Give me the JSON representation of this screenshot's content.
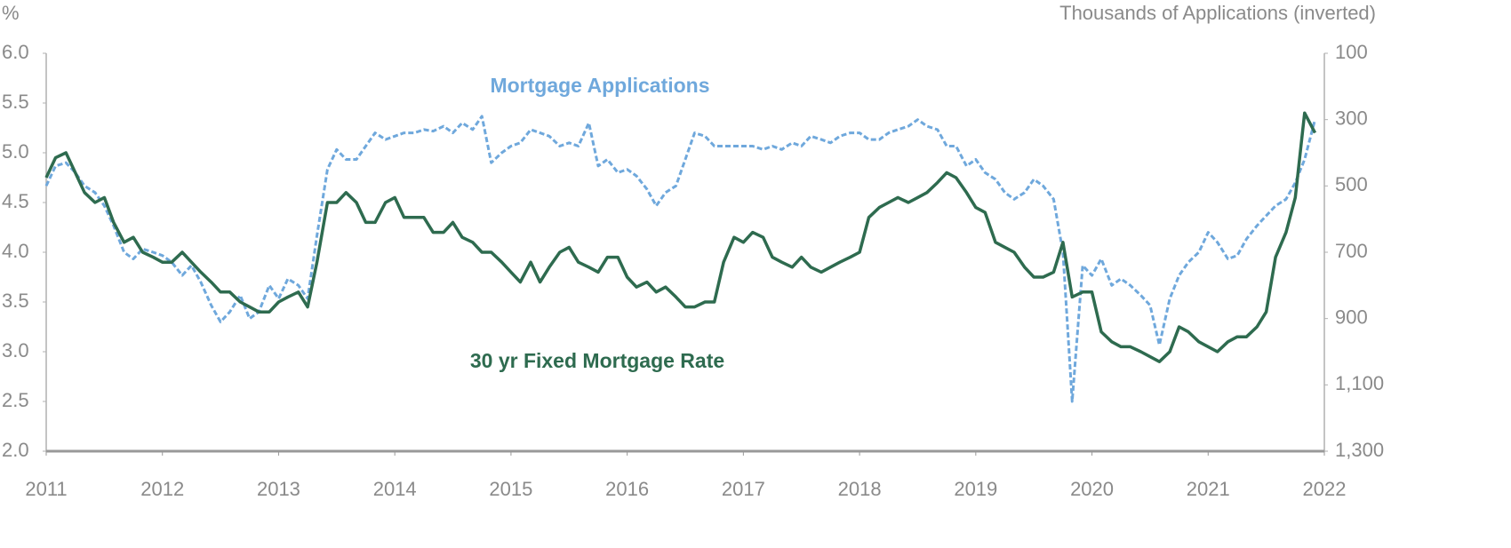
{
  "chart_data": {
    "type": "line",
    "y_unit": "%",
    "y2_label": "Thousands of Applications (inverted)",
    "x": [
      2011,
      2011.08,
      2011.17,
      2011.25,
      2011.33,
      2011.42,
      2011.5,
      2011.58,
      2011.67,
      2011.75,
      2011.83,
      2011.92,
      2012,
      2012.08,
      2012.17,
      2012.25,
      2012.33,
      2012.42,
      2012.5,
      2012.58,
      2012.67,
      2012.75,
      2012.83,
      2012.92,
      2013,
      2013.08,
      2013.17,
      2013.25,
      2013.33,
      2013.42,
      2013.5,
      2013.58,
      2013.67,
      2013.75,
      2013.83,
      2013.92,
      2014,
      2014.08,
      2014.17,
      2014.25,
      2014.33,
      2014.42,
      2014.5,
      2014.58,
      2014.67,
      2014.75,
      2014.83,
      2014.92,
      2015,
      2015.08,
      2015.17,
      2015.25,
      2015.33,
      2015.42,
      2015.5,
      2015.58,
      2015.67,
      2015.75,
      2015.83,
      2015.92,
      2016,
      2016.08,
      2016.17,
      2016.25,
      2016.33,
      2016.42,
      2016.5,
      2016.58,
      2016.67,
      2016.75,
      2016.83,
      2016.92,
      2017,
      2017.08,
      2017.17,
      2017.25,
      2017.33,
      2017.42,
      2017.5,
      2017.58,
      2017.67,
      2017.75,
      2017.83,
      2017.92,
      2018,
      2018.08,
      2018.17,
      2018.25,
      2018.33,
      2018.42,
      2018.5,
      2018.58,
      2018.67,
      2018.75,
      2018.83,
      2018.92,
      2019,
      2019.08,
      2019.17,
      2019.25,
      2019.33,
      2019.42,
      2019.5,
      2019.58,
      2019.67,
      2019.75,
      2019.83,
      2019.92,
      2020,
      2020.08,
      2020.17,
      2020.25,
      2020.33,
      2020.42,
      2020.5,
      2020.58,
      2020.67,
      2020.75,
      2020.83,
      2020.92,
      2021,
      2021.08,
      2021.17,
      2021.25,
      2021.33,
      2021.42,
      2021.5,
      2021.58,
      2021.67,
      2021.75,
      2021.83,
      2021.92
    ],
    "series": [
      {
        "name": "30 yr Fixed Mortgage Rate",
        "color": "#2e6b4f",
        "dashed": false,
        "axis": "y",
        "values": [
          4.75,
          4.95,
          5.0,
          4.8,
          4.6,
          4.5,
          4.55,
          4.3,
          4.1,
          4.15,
          4.0,
          3.95,
          3.9,
          3.9,
          4.0,
          3.9,
          3.8,
          3.7,
          3.6,
          3.6,
          3.5,
          3.45,
          3.4,
          3.4,
          3.5,
          3.55,
          3.6,
          3.45,
          3.9,
          4.5,
          4.5,
          4.6,
          4.5,
          4.3,
          4.3,
          4.5,
          4.55,
          4.35,
          4.35,
          4.35,
          4.2,
          4.2,
          4.3,
          4.15,
          4.1,
          4.0,
          4.0,
          3.9,
          3.8,
          3.7,
          3.9,
          3.7,
          3.85,
          4.0,
          4.05,
          3.9,
          3.85,
          3.8,
          3.95,
          3.95,
          3.75,
          3.65,
          3.7,
          3.6,
          3.65,
          3.55,
          3.45,
          3.45,
          3.5,
          3.5,
          3.9,
          4.15,
          4.1,
          4.2,
          4.15,
          3.95,
          3.9,
          3.85,
          3.95,
          3.85,
          3.8,
          3.85,
          3.9,
          3.95,
          4.0,
          4.35,
          4.45,
          4.5,
          4.55,
          4.5,
          4.55,
          4.6,
          4.7,
          4.8,
          4.75,
          4.6,
          4.45,
          4.4,
          4.1,
          4.05,
          4.0,
          3.85,
          3.75,
          3.75,
          3.8,
          4.1,
          3.55,
          3.6,
          3.6,
          3.2,
          3.1,
          3.05,
          3.05,
          3.0,
          2.95,
          2.9,
          3.0,
          3.25,
          3.2,
          3.1,
          3.05,
          3.0,
          3.1,
          3.15,
          3.15,
          3.25,
          3.4,
          3.95,
          4.2,
          4.55,
          5.4,
          5.2
        ]
      },
      {
        "name": "Mortgage Applications",
        "color": "#6fa8dc",
        "dashed": true,
        "axis": "y2",
        "values": [
          500,
          440,
          430,
          460,
          500,
          520,
          560,
          620,
          700,
          720,
          690,
          700,
          710,
          730,
          770,
          740,
          790,
          860,
          910,
          880,
          830,
          900,
          880,
          800,
          840,
          780,
          800,
          840,
          650,
          450,
          390,
          420,
          420,
          380,
          340,
          360,
          350,
          340,
          340,
          330,
          335,
          320,
          340,
          310,
          330,
          290,
          430,
          400,
          380,
          370,
          330,
          340,
          350,
          380,
          370,
          380,
          310,
          440,
          420,
          460,
          450,
          470,
          510,
          560,
          520,
          500,
          420,
          340,
          350,
          380,
          380,
          380,
          380,
          380,
          390,
          380,
          390,
          370,
          380,
          350,
          360,
          370,
          350,
          340,
          340,
          360,
          360,
          340,
          330,
          320,
          300,
          320,
          330,
          380,
          380,
          440,
          420,
          460,
          480,
          520,
          540,
          520,
          480,
          500,
          540,
          700,
          1150,
          740,
          770,
          720,
          800,
          780,
          800,
          830,
          860,
          980,
          840,
          770,
          730,
          700,
          640,
          670,
          720,
          710,
          660,
          620,
          590,
          560,
          540,
          490,
          420,
          300
        ]
      }
    ],
    "xlim": [
      2011,
      2022
    ],
    "xticks": [
      2011,
      2012,
      2013,
      2014,
      2015,
      2016,
      2017,
      2018,
      2019,
      2020,
      2021,
      2022
    ],
    "ylim": [
      2,
      6
    ],
    "yticks": [
      {
        "value": 2,
        "label": "2.0"
      },
      2.5,
      {
        "value": 3,
        "label": "3.0"
      },
      3.5,
      {
        "value": 4,
        "label": "4.0"
      },
      4.5,
      {
        "value": 5,
        "label": "5.0"
      },
      5.5,
      {
        "value": 6,
        "label": "6.0"
      }
    ],
    "y2lim": [
      1300,
      100
    ],
    "y2ticks": [
      100,
      300,
      500,
      700,
      900,
      {
        "value": 1100,
        "label": "1,100"
      },
      {
        "value": 1300,
        "label": "1,300"
      }
    ],
    "grid": false
  }
}
